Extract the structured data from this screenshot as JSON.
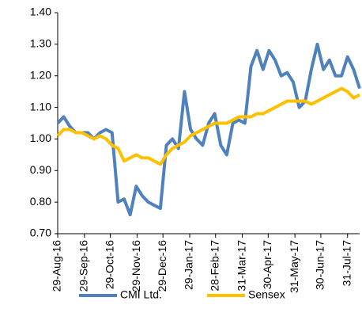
{
  "chart_data": {
    "type": "line",
    "x": [
      "2016-08-29",
      "2016-09-05",
      "2016-09-12",
      "2016-09-19",
      "2016-09-26",
      "2016-10-03",
      "2016-10-10",
      "2016-10-17",
      "2016-10-24",
      "2016-10-31",
      "2016-11-07",
      "2016-11-14",
      "2016-11-21",
      "2016-11-28",
      "2016-12-05",
      "2016-12-12",
      "2016-12-19",
      "2016-12-26",
      "2017-01-02",
      "2017-01-09",
      "2017-01-16",
      "2017-01-23",
      "2017-01-30",
      "2017-02-06",
      "2017-02-13",
      "2017-02-20",
      "2017-02-27",
      "2017-03-06",
      "2017-03-13",
      "2017-03-20",
      "2017-03-27",
      "2017-04-03",
      "2017-04-10",
      "2017-04-17",
      "2017-04-24",
      "2017-05-01",
      "2017-05-08",
      "2017-05-15",
      "2017-05-22",
      "2017-05-29",
      "2017-06-05",
      "2017-06-12",
      "2017-06-19",
      "2017-06-26",
      "2017-07-03",
      "2017-07-10",
      "2017-07-17",
      "2017-07-24",
      "2017-07-31",
      "2017-08-07",
      "2017-08-14"
    ],
    "series": [
      {
        "name": "CMI Ltd.",
        "color": "#4f81bd",
        "values": [
          1.05,
          1.07,
          1.04,
          1.02,
          1.02,
          1.02,
          1.0,
          1.02,
          1.03,
          1.02,
          0.8,
          0.81,
          0.76,
          0.85,
          0.82,
          0.8,
          0.79,
          0.78,
          0.98,
          1.0,
          0.97,
          1.15,
          1.03,
          1.0,
          0.98,
          1.05,
          1.08,
          0.98,
          0.95,
          1.05,
          1.06,
          1.05,
          1.23,
          1.28,
          1.22,
          1.28,
          1.25,
          1.2,
          1.21,
          1.18,
          1.1,
          1.12,
          1.22,
          1.3,
          1.22,
          1.25,
          1.2,
          1.2,
          1.26,
          1.22,
          1.16
        ]
      },
      {
        "name": "Sensex",
        "color": "#ffc000",
        "values": [
          1.01,
          1.03,
          1.03,
          1.02,
          1.02,
          1.01,
          1.0,
          1.01,
          1.0,
          0.98,
          0.97,
          0.93,
          0.94,
          0.95,
          0.94,
          0.94,
          0.93,
          0.92,
          0.95,
          0.97,
          0.98,
          0.99,
          1.01,
          1.02,
          1.03,
          1.04,
          1.05,
          1.05,
          1.05,
          1.06,
          1.07,
          1.07,
          1.07,
          1.08,
          1.08,
          1.09,
          1.1,
          1.11,
          1.12,
          1.12,
          1.12,
          1.12,
          1.11,
          1.12,
          1.13,
          1.14,
          1.15,
          1.16,
          1.15,
          1.13,
          1.14
        ]
      }
    ],
    "xlim": [
      "2016-08-29",
      "2017-08-14"
    ],
    "xticks": [
      {
        "value": "2016-08-29",
        "label": "29-Aug-16"
      },
      {
        "value": "2016-09-29",
        "label": "29-Sep-16"
      },
      {
        "value": "2016-10-29",
        "label": "29-Oct-16"
      },
      {
        "value": "2016-11-29",
        "label": "29-Nov-16"
      },
      {
        "value": "2016-12-29",
        "label": "29-Dec-16"
      },
      {
        "value": "2017-01-29",
        "label": "29-Jan-17"
      },
      {
        "value": "2017-02-28",
        "label": "28-Feb-17"
      },
      {
        "value": "2017-03-31",
        "label": "31-Mar-17"
      },
      {
        "value": "2017-04-30",
        "label": "30-Apr-17"
      },
      {
        "value": "2017-05-31",
        "label": "31-May-17"
      },
      {
        "value": "2017-06-30",
        "label": "30-Jun-17"
      },
      {
        "value": "2017-07-31",
        "label": "31-Jul-17"
      }
    ],
    "ylim": [
      0.7,
      1.4
    ],
    "yticks": [
      {
        "value": 0.7,
        "label": "0.70"
      },
      {
        "value": 0.8,
        "label": "0.80"
      },
      {
        "value": 0.9,
        "label": "0.90"
      },
      {
        "value": 1.0,
        "label": "1.00"
      },
      {
        "value": 1.1,
        "label": "1.10"
      },
      {
        "value": 1.2,
        "label": "1.20"
      },
      {
        "value": 1.3,
        "label": "1.30"
      },
      {
        "value": 1.4,
        "label": "1.40"
      }
    ],
    "grid": false,
    "legend": "bottom"
  }
}
